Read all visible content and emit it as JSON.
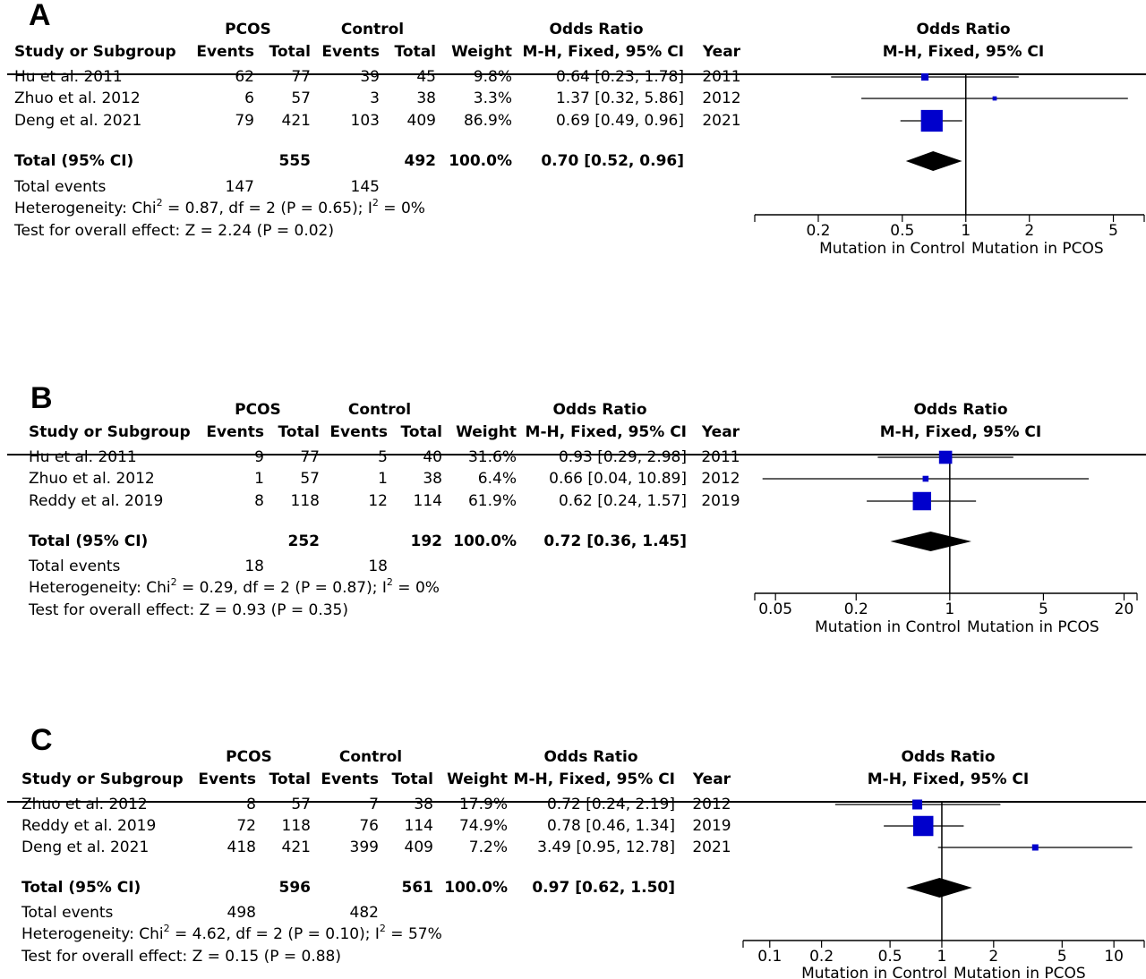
{
  "colors": {
    "square": "#0000cc",
    "diamond": "#000000",
    "line": "#000000"
  },
  "headers": {
    "pcos": "PCOS",
    "control": "Control",
    "odds_ratio": "Odds Ratio",
    "study": "Study or Subgroup",
    "events": "Events",
    "total": "Total",
    "weight": "Weight",
    "method": "M-H, Fixed, 95% CI",
    "year": "Year",
    "total_row": "Total (95% CI)",
    "total_events": "Total events",
    "heterogeneity_prefix": "Heterogeneity: Chi",
    "overall_prefix": "Test for overall effect: ",
    "favours_left": "Mutation in Control",
    "favours_right": "Mutation in PCOS"
  },
  "chart_data": [
    {
      "panel": "A",
      "type": "forest",
      "xscale": "log",
      "xlim": [
        0.1,
        7
      ],
      "xticks": [
        "0.2",
        "0.5",
        "1",
        "2",
        "5"
      ],
      "studies": [
        {
          "name": "Hu et al. 2011",
          "pcos_events": "62",
          "pcos_total": "77",
          "ctrl_events": "39",
          "ctrl_total": "45",
          "weight": "9.8%",
          "ci_text": "0.64 [0.23, 1.78]",
          "year": "2011",
          "or": 0.64,
          "lo": 0.23,
          "hi": 1.78,
          "w": 9.8
        },
        {
          "name": "Zhuo et al. 2012",
          "pcos_events": "6",
          "pcos_total": "57",
          "ctrl_events": "3",
          "ctrl_total": "38",
          "weight": "3.3%",
          "ci_text": "1.37 [0.32, 5.86]",
          "year": "2012",
          "or": 1.37,
          "lo": 0.32,
          "hi": 5.86,
          "w": 3.3
        },
        {
          "name": "Deng et al. 2021",
          "pcos_events": "79",
          "pcos_total": "421",
          "ctrl_events": "103",
          "ctrl_total": "409",
          "weight": "86.9%",
          "ci_text": "0.69 [0.49, 0.96]",
          "year": "2021",
          "or": 0.69,
          "lo": 0.49,
          "hi": 0.96,
          "w": 86.9
        }
      ],
      "total": {
        "pcos_total": "555",
        "ctrl_total": "492",
        "weight": "100.0%",
        "ci_text": "0.70 [0.52, 0.96]",
        "or": 0.7,
        "lo": 0.52,
        "hi": 0.96
      },
      "total_events": {
        "pcos": "147",
        "ctrl": "145"
      },
      "heterogeneity": {
        "chi": "2",
        "rest": " = 0.87, df = 2 (P = 0.65); I",
        "i": "2",
        "end": " = 0%"
      },
      "overall": "Z = 2.24 (P = 0.02)"
    },
    {
      "panel": "B",
      "type": "forest",
      "xscale": "log",
      "xlim": [
        0.035,
        25
      ],
      "xticks": [
        "0.05",
        "0.2",
        "1",
        "5",
        "20"
      ],
      "studies": [
        {
          "name": "Hu et al. 2011",
          "pcos_events": "9",
          "pcos_total": "77",
          "ctrl_events": "5",
          "ctrl_total": "40",
          "weight": "31.6%",
          "ci_text": "0.93 [0.29, 2.98]",
          "year": "2011",
          "or": 0.93,
          "lo": 0.29,
          "hi": 2.98,
          "w": 31.6
        },
        {
          "name": "Zhuo et al. 2012",
          "pcos_events": "1",
          "pcos_total": "57",
          "ctrl_events": "1",
          "ctrl_total": "38",
          "weight": "6.4%",
          "ci_text": "0.66 [0.04, 10.89]",
          "year": "2012",
          "or": 0.66,
          "lo": 0.04,
          "hi": 10.89,
          "w": 6.4
        },
        {
          "name": "Reddy et al. 2019",
          "pcos_events": "8",
          "pcos_total": "118",
          "ctrl_events": "12",
          "ctrl_total": "114",
          "weight": "61.9%",
          "ci_text": "0.62 [0.24, 1.57]",
          "year": "2019",
          "or": 0.62,
          "lo": 0.24,
          "hi": 1.57,
          "w": 61.9
        }
      ],
      "total": {
        "pcos_total": "252",
        "ctrl_total": "192",
        "weight": "100.0%",
        "ci_text": "0.72 [0.36, 1.45]",
        "or": 0.72,
        "lo": 0.36,
        "hi": 1.45
      },
      "total_events": {
        "pcos": "18",
        "ctrl": "18"
      },
      "heterogeneity": {
        "chi": "2",
        "rest": " = 0.29, df = 2 (P = 0.87); I",
        "i": "2",
        "end": " = 0%"
      },
      "overall": "Z = 0.93 (P = 0.35)"
    },
    {
      "panel": "C",
      "type": "forest",
      "xscale": "log",
      "xlim": [
        0.07,
        15
      ],
      "xticks": [
        "0.1",
        "0.2",
        "0.5",
        "1",
        "2",
        "5",
        "10"
      ],
      "studies": [
        {
          "name": "Zhuo et al. 2012",
          "pcos_events": "8",
          "pcos_total": "57",
          "ctrl_events": "7",
          "ctrl_total": "38",
          "weight": "17.9%",
          "ci_text": "0.72 [0.24, 2.19]",
          "year": "2012",
          "or": 0.72,
          "lo": 0.24,
          "hi": 2.19,
          "w": 17.9
        },
        {
          "name": "Reddy et al. 2019",
          "pcos_events": "72",
          "pcos_total": "118",
          "ctrl_events": "76",
          "ctrl_total": "114",
          "weight": "74.9%",
          "ci_text": "0.78 [0.46, 1.34]",
          "year": "2019",
          "or": 0.78,
          "lo": 0.46,
          "hi": 1.34,
          "w": 74.9
        },
        {
          "name": "Deng et al. 2021",
          "pcos_events": "418",
          "pcos_total": "421",
          "ctrl_events": "399",
          "ctrl_total": "409",
          "weight": "7.2%",
          "ci_text": "3.49 [0.95, 12.78]",
          "year": "2021",
          "or": 3.49,
          "lo": 0.95,
          "hi": 12.78,
          "w": 7.2
        }
      ],
      "total": {
        "pcos_total": "596",
        "ctrl_total": "561",
        "weight": "100.0%",
        "ci_text": "0.97 [0.62, 1.50]",
        "or": 0.97,
        "lo": 0.62,
        "hi": 1.5
      },
      "total_events": {
        "pcos": "498",
        "ctrl": "482"
      },
      "heterogeneity": {
        "chi": "2",
        "rest": " = 4.62, df = 2 (P = 0.10); I",
        "i": "2",
        "end": " = 57%"
      },
      "overall": "Z = 0.15 (P = 0.88)"
    }
  ]
}
